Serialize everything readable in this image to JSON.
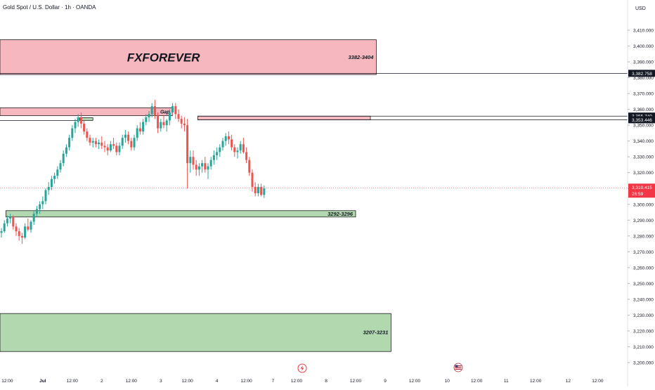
{
  "header": {
    "symbol_title": "Gold Spot / U.S. Dollar · 1h · OANDA",
    "currency": "USD"
  },
  "colors": {
    "up": "#26a69a",
    "down": "#ef5350",
    "resistance_fill": "#f6b8be",
    "support_fill": "#b2d8b0",
    "gap_fill": "#f6b8be",
    "current_price": "#f23645",
    "axis_text": "#131722",
    "price_tag_bg": "#131722"
  },
  "icons": {
    "event_icon_1": "lightning-icon",
    "event_icon_2": "us-flag-icon"
  },
  "chart_data": {
    "type": "candlestick",
    "title": "Gold Spot / U.S. Dollar · 1h · OANDA",
    "ylim": [
      3197,
      3425
    ],
    "y_ticks": [
      3200,
      3210,
      3220,
      3230,
      3240,
      3250,
      3260,
      3270,
      3280,
      3290,
      3300,
      3310,
      3320,
      3330,
      3340,
      3350,
      3360,
      3370,
      3380,
      3390,
      3400,
      3410
    ],
    "y_tick_labels": [
      "3,200.000",
      "3,210.000",
      "3,220.000",
      "3,230.000",
      "3,240.000",
      "3,250.000",
      "3,260.000",
      "3,270.000",
      "3,280.000",
      "3,290.000",
      "3,300.000",
      "3,310.000",
      "3,320.000",
      "3,330.000",
      "3,340.000",
      "3,350.000",
      "3,360.000",
      "3,370.000",
      "3,380.000",
      "3,390.000",
      "3,400.000",
      "3,410.000"
    ],
    "x_ticks": [
      {
        "bar": 2,
        "label": "12:00"
      },
      {
        "bar": 14,
        "label": "Jul"
      },
      {
        "bar": 24,
        "label": "12:00"
      },
      {
        "bar": 34,
        "label": "2"
      },
      {
        "bar": 44,
        "label": "12:00"
      },
      {
        "bar": 54,
        "label": "3"
      },
      {
        "bar": 63,
        "label": "12:00"
      },
      {
        "bar": 73,
        "label": "4"
      },
      {
        "bar": 83,
        "label": "12:00"
      },
      {
        "bar": 92,
        "label": "7"
      },
      {
        "bar": 100,
        "label": "12:00"
      },
      {
        "bar": 110,
        "label": "8"
      },
      {
        "bar": 120,
        "label": "12:00"
      },
      {
        "bar": 130,
        "label": "9"
      },
      {
        "bar": 140,
        "label": "12:00"
      },
      {
        "bar": 151,
        "label": "10"
      },
      {
        "bar": 161,
        "label": "12:00"
      },
      {
        "bar": 171,
        "label": "11"
      },
      {
        "bar": 181,
        "label": "12:00"
      },
      {
        "bar": 192,
        "label": "12"
      },
      {
        "bar": 202,
        "label": "12:00"
      }
    ],
    "candles": [
      [
        3282,
        3285,
        3279,
        3283
      ],
      [
        3283,
        3290,
        3282,
        3288
      ],
      [
        3288,
        3293,
        3286,
        3291
      ],
      [
        3291,
        3294,
        3288,
        3292
      ],
      [
        3292,
        3293,
        3284,
        3286
      ],
      [
        3286,
        3288,
        3280,
        3283
      ],
      [
        3283,
        3285,
        3277,
        3280
      ],
      [
        3280,
        3282,
        3275,
        3279
      ],
      [
        3279,
        3288,
        3278,
        3286
      ],
      [
        3286,
        3291,
        3283,
        3284
      ],
      [
        3284,
        3290,
        3282,
        3289
      ],
      [
        3289,
        3296,
        3287,
        3294
      ],
      [
        3294,
        3299,
        3292,
        3297
      ],
      [
        3297,
        3302,
        3294,
        3300
      ],
      [
        3300,
        3305,
        3297,
        3302
      ],
      [
        3302,
        3310,
        3300,
        3309
      ],
      [
        3309,
        3314,
        3306,
        3311
      ],
      [
        3311,
        3318,
        3309,
        3316
      ],
      [
        3316,
        3320,
        3313,
        3318
      ],
      [
        3318,
        3324,
        3316,
        3322
      ],
      [
        3322,
        3328,
        3320,
        3326
      ],
      [
        3326,
        3334,
        3324,
        3332
      ],
      [
        3332,
        3338,
        3330,
        3336
      ],
      [
        3336,
        3344,
        3334,
        3342
      ],
      [
        3342,
        3350,
        3340,
        3348
      ],
      [
        3348,
        3354,
        3345,
        3352
      ],
      [
        3352,
        3357,
        3349,
        3355
      ],
      [
        3355,
        3358,
        3348,
        3351
      ],
      [
        3351,
        3353,
        3344,
        3346
      ],
      [
        3346,
        3348,
        3340,
        3342
      ],
      [
        3342,
        3344,
        3337,
        3339
      ],
      [
        3339,
        3342,
        3336,
        3340
      ],
      [
        3340,
        3342,
        3336,
        3338
      ],
      [
        3338,
        3341,
        3335,
        3339
      ],
      [
        3339,
        3343,
        3335,
        3337
      ],
      [
        3337,
        3340,
        3333,
        3336
      ],
      [
        3336,
        3338,
        3331,
        3334
      ],
      [
        3334,
        3340,
        3333,
        3338
      ],
      [
        3338,
        3342,
        3335,
        3337
      ],
      [
        3337,
        3339,
        3331,
        3333
      ],
      [
        3333,
        3339,
        3331,
        3337
      ],
      [
        3337,
        3344,
        3335,
        3342
      ],
      [
        3342,
        3347,
        3339,
        3344
      ],
      [
        3344,
        3346,
        3338,
        3340
      ],
      [
        3340,
        3342,
        3334,
        3336
      ],
      [
        3336,
        3344,
        3334,
        3342
      ],
      [
        3342,
        3350,
        3340,
        3348
      ],
      [
        3348,
        3352,
        3344,
        3346
      ],
      [
        3346,
        3354,
        3344,
        3352
      ],
      [
        3352,
        3357,
        3350,
        3355
      ],
      [
        3355,
        3359,
        3352,
        3357
      ],
      [
        3357,
        3364,
        3355,
        3362
      ],
      [
        3362,
        3366,
        3354,
        3356
      ],
      [
        3356,
        3358,
        3345,
        3348
      ],
      [
        3348,
        3354,
        3346,
        3352
      ],
      [
        3352,
        3356,
        3348,
        3350
      ],
      [
        3350,
        3354,
        3346,
        3353
      ],
      [
        3353,
        3360,
        3350,
        3358
      ],
      [
        3358,
        3364,
        3356,
        3362
      ],
      [
        3362,
        3364,
        3354,
        3357
      ],
      [
        3357,
        3360,
        3352,
        3354
      ],
      [
        3354,
        3356,
        3348,
        3351
      ],
      [
        3351,
        3355,
        3346,
        3350
      ],
      [
        3350,
        3354,
        3310,
        3326
      ],
      [
        3326,
        3334,
        3320,
        3330
      ],
      [
        3330,
        3334,
        3322,
        3325
      ],
      [
        3325,
        3328,
        3318,
        3322
      ],
      [
        3322,
        3326,
        3318,
        3324
      ],
      [
        3324,
        3328,
        3320,
        3326
      ],
      [
        3326,
        3330,
        3320,
        3322
      ],
      [
        3322,
        3326,
        3316,
        3324
      ],
      [
        3324,
        3330,
        3322,
        3328
      ],
      [
        3328,
        3334,
        3325,
        3331
      ],
      [
        3331,
        3336,
        3328,
        3333
      ],
      [
        3333,
        3338,
        3330,
        3336
      ],
      [
        3336,
        3342,
        3334,
        3340
      ],
      [
        3340,
        3345,
        3337,
        3343
      ],
      [
        3343,
        3346,
        3338,
        3341
      ],
      [
        3341,
        3344,
        3334,
        3336
      ],
      [
        3336,
        3338,
        3330,
        3333
      ],
      [
        3333,
        3336,
        3329,
        3334
      ],
      [
        3334,
        3340,
        3332,
        3338
      ],
      [
        3338,
        3342,
        3332,
        3333
      ],
      [
        3333,
        3336,
        3326,
        3328
      ],
      [
        3328,
        3330,
        3318,
        3320
      ],
      [
        3320,
        3322,
        3308,
        3311
      ],
      [
        3311,
        3314,
        3305,
        3307
      ],
      [
        3307,
        3313,
        3305,
        3311
      ],
      [
        3311,
        3313,
        3305,
        3306
      ],
      [
        3306,
        3312,
        3304,
        3310
      ]
    ]
  },
  "zones": [
    {
      "id": "resistance-zone",
      "name": "FXFOREVER",
      "label": "3382-3404",
      "low": 3382,
      "high": 3404,
      "from_bar": 0,
      "to_bar": 127
    },
    {
      "id": "gap-zone",
      "label": "Gap",
      "low": 3356,
      "high": 3361,
      "from_bar": 0,
      "to_bar": 58
    },
    {
      "id": "gap-zone-2",
      "label": "",
      "low": 3353.4,
      "high": 3355.7,
      "from_bar": 67,
      "to_bar": 125
    },
    {
      "id": "support-zone-1",
      "label": "3292-3296",
      "low": 3292,
      "high": 3296,
      "from_bar": 2,
      "to_bar": 120
    },
    {
      "id": "support-zone-2",
      "label": "3207-3231",
      "low": 3207,
      "high": 3231,
      "from_bar": 0,
      "to_bar": 132
    },
    {
      "id": "small-box",
      "label": "",
      "low": 3353,
      "high": 3354.7,
      "from_bar": 27,
      "to_bar": 31
    }
  ],
  "lines": [
    {
      "id": "level-3382",
      "price": 3382.758,
      "from_bar": 0
    },
    {
      "id": "level-3355",
      "price": 3355.74,
      "from_bar": 67
    },
    {
      "id": "level-3353",
      "price": 3353.446,
      "from_bar": 67
    },
    {
      "id": "level-left",
      "price": 3353,
      "from_bar": 0,
      "to_bar": 26
    }
  ],
  "price_tags": [
    {
      "price": 3382.758,
      "label": "3,382.758",
      "kind": "dark"
    },
    {
      "price": 3355.74,
      "label": "3,355.740",
      "kind": "dark"
    },
    {
      "price": 3353.446,
      "label": "3,353.446",
      "kind": "dark"
    },
    {
      "price": 3310.415,
      "label": "3,310.415",
      "sublabel": "26:59",
      "kind": "current"
    }
  ]
}
